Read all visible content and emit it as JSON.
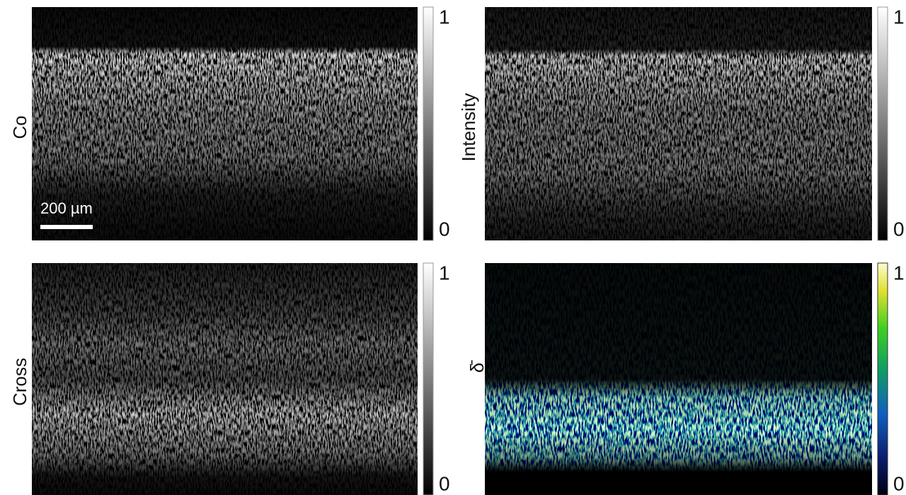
{
  "panels": [
    {
      "label": "Co",
      "scale_bar": "200 µm",
      "colorbar": {
        "ticks": [
          1,
          0
        ]
      }
    },
    {
      "label": "Intensity",
      "colorbar": {
        "ticks": [
          1,
          0
        ]
      }
    },
    {
      "label": "Cross",
      "colorbar": {
        "ticks": [
          1,
          0
        ]
      }
    },
    {
      "label": "δ̄",
      "colorbar": {
        "ticks": [
          1,
          0
        ]
      }
    }
  ]
}
